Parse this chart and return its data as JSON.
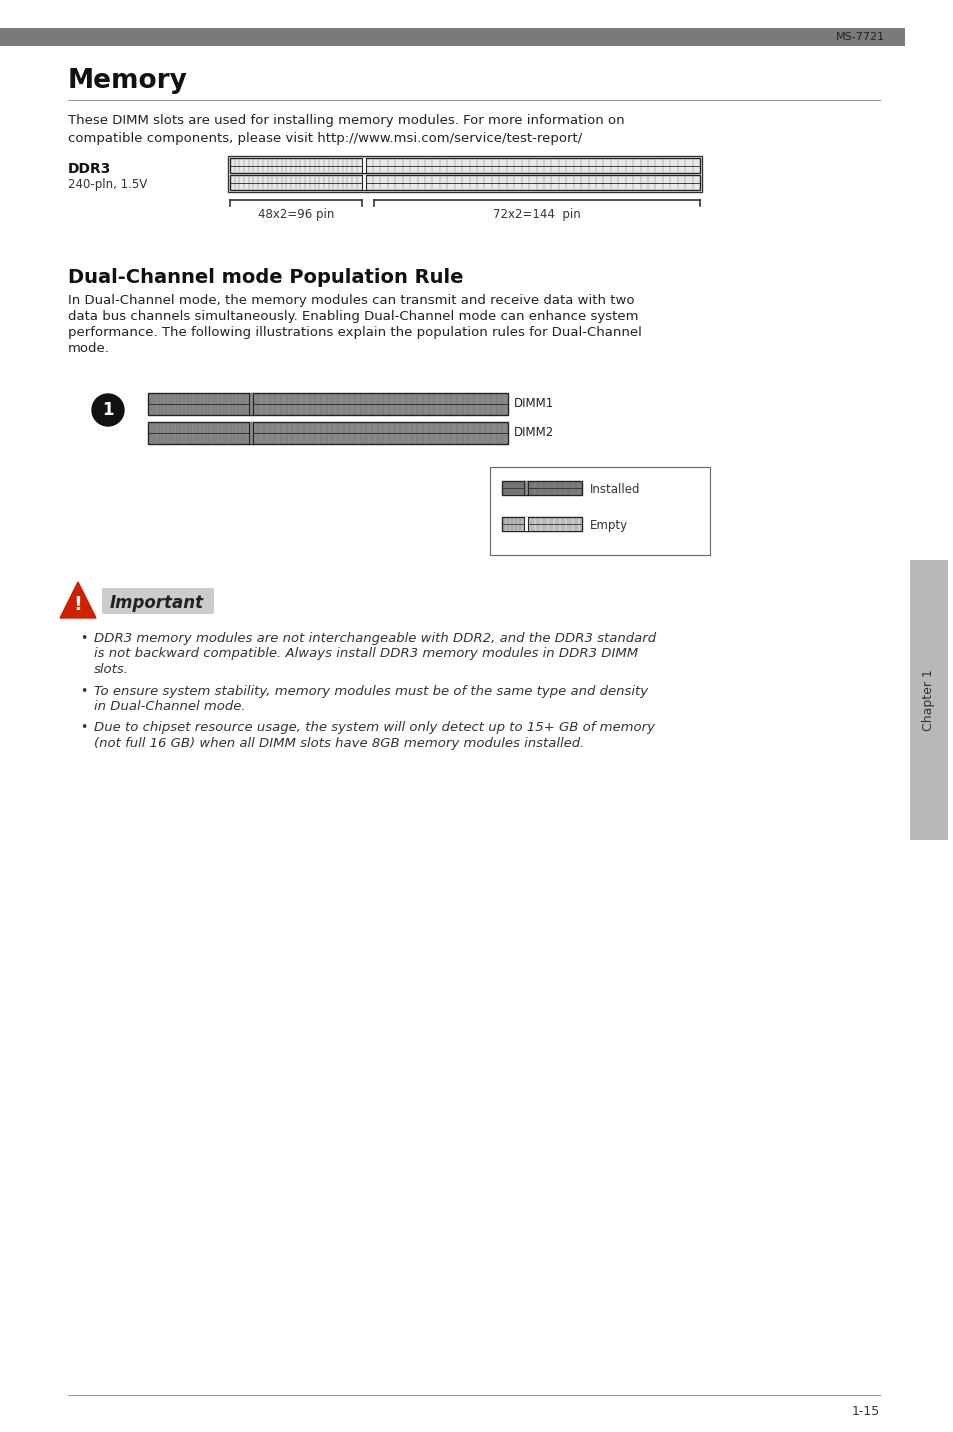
{
  "page_id": "MS-7721",
  "page_num": "1-15",
  "bg_color": "#ffffff",
  "header_bar_color": "#7a7a7a",
  "title_memory": "Memory",
  "body_text_1a": "These DIMM slots are used for installing memory modules. For more information on",
  "body_text_1b": "compatible components, please visit http://www.msi.com/service/test-report/",
  "ddr3_label": "DDR3",
  "ddr3_sublabel": "240-pln, 1.5V",
  "pin_label_left": "48x2=96 pin",
  "pin_label_right": "72x2=144  pin",
  "section2_title": "Dual-Channel mode Population Rule",
  "section2_body_lines": [
    "In Dual-Channel mode, the memory modules can transmit and receive data with two",
    "data bus channels simultaneously. Enabling Dual-Channel mode can enhance system",
    "performance. The following illustrations explain the population rules for Dual-Channel",
    "mode."
  ],
  "dimm1_label": "DIMM1",
  "dimm2_label": "DIMM2",
  "installed_label": "Installed",
  "empty_label": "Empty",
  "important_title": "Important",
  "bullet1_lines": [
    "DDR3 memory modules are not interchangeable with DDR2, and the DDR3 standard",
    "is not backward compatible. Always install DDR3 memory modules in DDR3 DIMM",
    "slots."
  ],
  "bullet2_lines": [
    "To ensure system stability, memory modules must be of the same type and density",
    "in Dual-Channel mode."
  ],
  "bullet3_lines": [
    "Due to chipset resource usage, the system will only detect up to 15+ GB of memory",
    "(not full 16 GB) when all DIMM slots have 8GB memory modules installed."
  ],
  "chapter_tab_text": "Chapter 1",
  "dimm_filled_color": "#888888",
  "dimm_pin_color": "#555555",
  "warning_red": "#cc2200",
  "important_bg": "#cccccc",
  "underline_color": "#999999",
  "right_tab_color": "#b8b8b8"
}
